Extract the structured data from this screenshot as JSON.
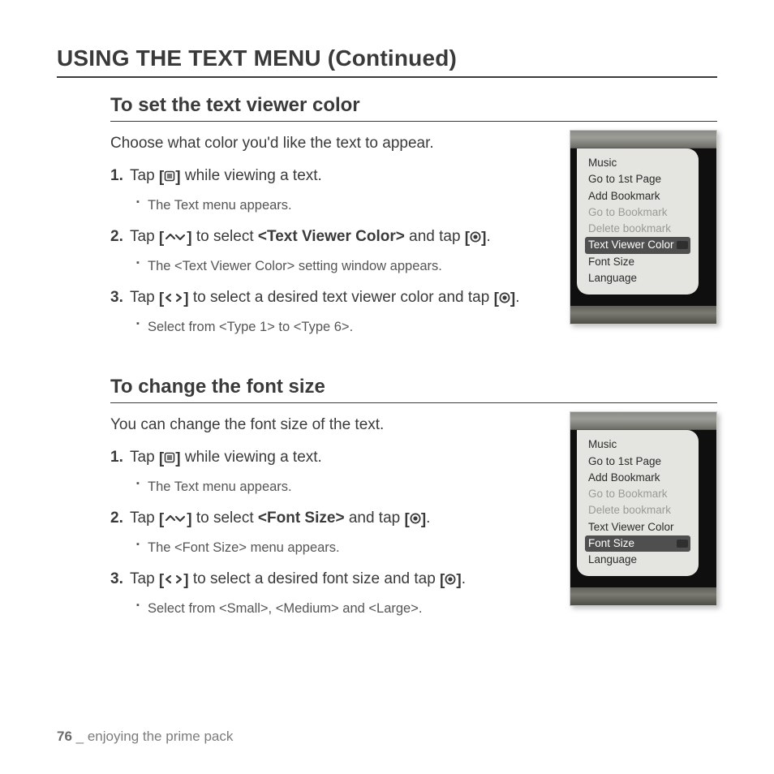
{
  "page_title": "USING THE TEXT MENU (Continued)",
  "footer": {
    "page_num": "76",
    "sep": " _ ",
    "chapter": "enjoying the prime pack"
  },
  "icons": {
    "menu": "menu-icon",
    "updown": "up-down-icon",
    "leftright": "left-right-icon",
    "ok": "ok-circle-icon"
  },
  "sections": [
    {
      "title": "To set the text viewer color",
      "intro": "Choose what color you'd like the text to appear.",
      "device_top": 0,
      "menu_items": [
        {
          "label": "Music",
          "dim": false,
          "sel": false
        },
        {
          "label": "Go to 1st Page",
          "dim": false,
          "sel": false
        },
        {
          "label": "Add Bookmark",
          "dim": false,
          "sel": false
        },
        {
          "label": "Go to Bookmark",
          "dim": true,
          "sel": false
        },
        {
          "label": "Delete bookmark",
          "dim": true,
          "sel": false
        },
        {
          "label": "Text Viewer Color",
          "dim": false,
          "sel": true
        },
        {
          "label": "Font Size",
          "dim": false,
          "sel": false
        },
        {
          "label": "Language",
          "dim": false,
          "sel": false
        }
      ],
      "steps": [
        {
          "pre": "Tap ",
          "icon": "menu",
          "mid": " while viewing a text.",
          "bold": null,
          "post": null,
          "bullet": "The Text menu appears."
        },
        {
          "pre": "Tap ",
          "icon": "updown",
          "mid": " to select ",
          "bold": "<Text Viewer Color>",
          "post_pre": " and tap ",
          "icon2": "ok",
          "post": ".",
          "bullet": "The <Text Viewer Color> setting window appears."
        },
        {
          "pre": "Tap ",
          "icon": "leftright",
          "mid": " to select a desired text viewer color and tap ",
          "icon2": "ok",
          "post": ".",
          "bullet": "Select from <Type 1> to <Type 6>."
        }
      ]
    },
    {
      "title": "To change the font size",
      "intro": "You can change the font size of the text.",
      "device_top": 0,
      "menu_items": [
        {
          "label": "Music",
          "dim": false,
          "sel": false
        },
        {
          "label": "Go to 1st Page",
          "dim": false,
          "sel": false
        },
        {
          "label": "Add Bookmark",
          "dim": false,
          "sel": false
        },
        {
          "label": "Go to Bookmark",
          "dim": true,
          "sel": false
        },
        {
          "label": "Delete bookmark",
          "dim": true,
          "sel": false
        },
        {
          "label": "Text Viewer Color",
          "dim": false,
          "sel": false
        },
        {
          "label": "Font Size",
          "dim": false,
          "sel": true
        },
        {
          "label": "Language",
          "dim": false,
          "sel": false
        }
      ],
      "steps": [
        {
          "pre": "Tap ",
          "icon": "menu",
          "mid": " while viewing a text.",
          "bullet": "The Text menu appears."
        },
        {
          "pre": "Tap ",
          "icon": "updown",
          "mid": " to select ",
          "bold": "<Font Size>",
          "post_pre": " and tap ",
          "icon2": "ok",
          "post": ".",
          "bullet": "The <Font Size> menu appears."
        },
        {
          "pre": "Tap ",
          "icon": "leftright",
          "mid": " to select a desired font size and tap ",
          "icon2": "ok",
          "post": ".",
          "bullet": "Select from <Small>, <Medium> and <Large>."
        }
      ]
    }
  ]
}
